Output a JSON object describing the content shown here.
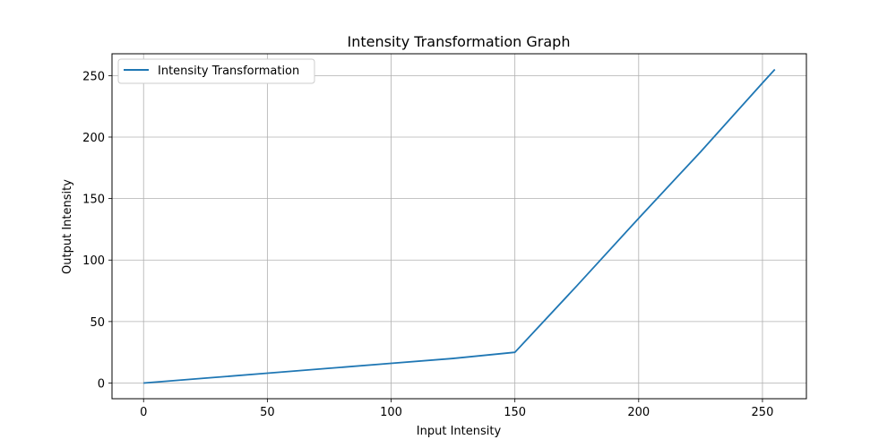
{
  "chart_data": {
    "type": "line",
    "title": "Intensity Transformation Graph",
    "xlabel": "Input Intensity",
    "ylabel": "Output Intensity",
    "xlim": [
      -12.75,
      267.75
    ],
    "ylim": [
      -12.75,
      267.75
    ],
    "xticks": [
      0,
      50,
      100,
      150,
      200,
      250
    ],
    "yticks": [
      0,
      50,
      100,
      150,
      200,
      250
    ],
    "grid": true,
    "legend_position": "top-left",
    "series": [
      {
        "name": "Intensity Transformation",
        "color": "#1f77b4",
        "x": [
          0,
          25,
          50,
          75,
          100,
          125,
          150,
          175,
          200,
          225,
          250,
          255
        ],
        "y": [
          0,
          4,
          8,
          12,
          16,
          20,
          25,
          79,
          134,
          188,
          244,
          255
        ]
      }
    ]
  }
}
